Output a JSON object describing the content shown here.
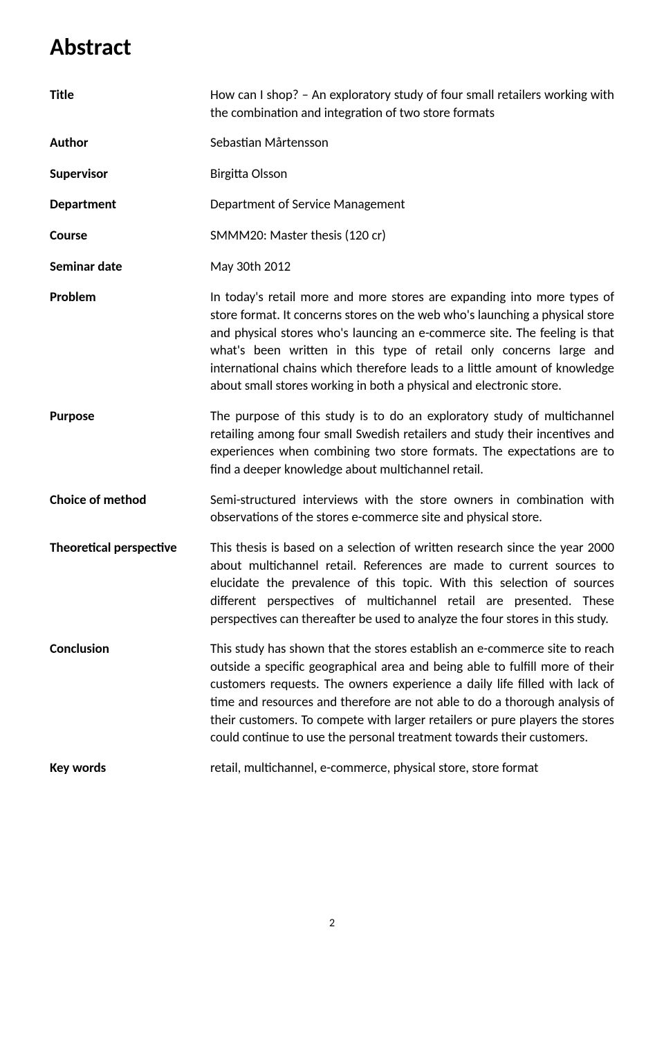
{
  "heading": "Abstract",
  "rows": [
    {
      "label": "Title",
      "value": "How can I shop? – An exploratory study of four small retailers working with the combination and integration of two store formats"
    },
    {
      "label": "Author",
      "value": "Sebastian Mårtensson"
    },
    {
      "label": "Supervisor",
      "value": "Birgitta Olsson"
    },
    {
      "label": "Department",
      "value": "Department of Service Management"
    },
    {
      "label": "Course",
      "value": "SMMM20: Master thesis (120 cr)"
    },
    {
      "label": "Seminar date",
      "value": "May 30th 2012"
    },
    {
      "label": "Problem",
      "value": "In today's retail more and more stores are expanding into more types of store format. It concerns stores on the web who's launching a physical store and physical stores who's launcing an e-commerce site. The feeling is that what's been written in this type of retail only concerns large and international chains which therefore leads to a little amount of knowledge about small stores working in both a physical and electronic store."
    },
    {
      "label": "Purpose",
      "value": "The purpose of this study is to do an exploratory study of multichannel retailing among four small Swedish retailers and study their incentives and experiences when combining two store formats. The expectations are to find a deeper knowledge about multichannel retail."
    },
    {
      "label": "Choice of method",
      "value": "Semi-structured interviews with the store owners in combination with observations of the stores e-commerce site and physical store."
    },
    {
      "label": "Theoretical perspective",
      "value": "This thesis is based on a selection of written research since the year 2000 about multichannel retail. References are made to current sources to elucidate the prevalence of this topic. With this selection of sources different perspectives of multichannel retail are presented. These perspectives can thereafter be used to analyze the four stores in this study."
    },
    {
      "label": "Conclusion",
      "value": "This study has shown that the stores establish an e-commerce site to reach outside a specific geographical area and being able to fulfill more of their customers requests. The owners experience a daily life filled with lack of time and resources and therefore are not able to do a thorough analysis of their customers. To compete with larger retailers or pure players the stores could continue to use the personal treatment towards their customers."
    },
    {
      "label": "Key words",
      "value": "retail, multichannel, e-commerce, physical store, store format"
    }
  ],
  "page_number": "2"
}
